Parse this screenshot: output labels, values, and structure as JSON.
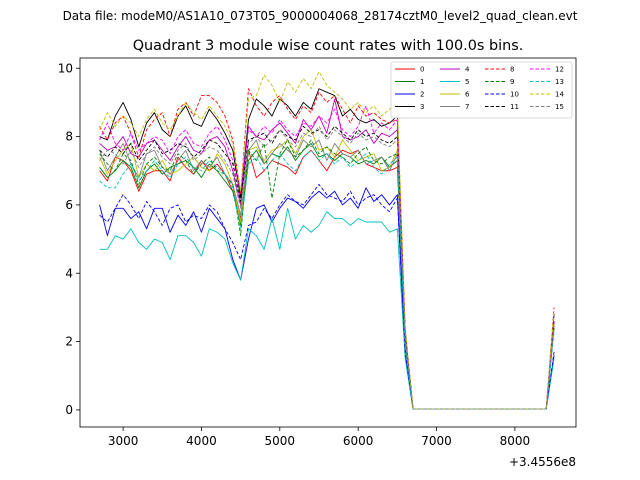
{
  "suptitle": "Data file: modeM0/AS1A10_073T05_9000004068_28174cztM0_level2_quad_clean.evt",
  "chart_data": {
    "type": "line",
    "title": "Quadrant 3 module wise count rates with 100.0s bins.",
    "xlabel": "",
    "ylabel": "",
    "x_offset_label": "+3.4556e8",
    "x_offset_value": 345560000,
    "xlim": [
      2450,
      8780
    ],
    "ylim": [
      -0.5,
      10.3
    ],
    "xticks": [
      3000,
      4000,
      5000,
      6000,
      7000,
      8000
    ],
    "yticks": [
      0,
      2,
      4,
      6,
      8,
      10
    ],
    "grid": false,
    "legend_position": "top-right",
    "x": [
      2700,
      2800,
      2900,
      3000,
      3100,
      3200,
      3300,
      3400,
      3500,
      3600,
      3700,
      3800,
      3900,
      4000,
      4100,
      4200,
      4300,
      4400,
      4500,
      4600,
      4700,
      4800,
      4900,
      5000,
      5100,
      5200,
      5300,
      5400,
      5500,
      5600,
      5700,
      5800,
      5900,
      6000,
      6100,
      6200,
      6300,
      6400,
      6500,
      6600,
      6700,
      6800,
      6900,
      7000,
      7100,
      7200,
      7300,
      7400,
      7500,
      7600,
      7700,
      7800,
      7900,
      8000,
      8100,
      8200,
      8300,
      8400,
      8500
    ],
    "series": [
      {
        "name": "0",
        "color": "#ff0000",
        "dash": "solid",
        "values": [
          7.0,
          6.7,
          7.4,
          7.3,
          7.0,
          6.4,
          6.9,
          7.0,
          7.0,
          6.7,
          7.4,
          7.1,
          6.9,
          7.3,
          7.0,
          7.2,
          6.9,
          6.4,
          5.6,
          7.6,
          6.8,
          7.0,
          7.3,
          7.2,
          7.1,
          6.9,
          7.4,
          7.6,
          7.3,
          7.0,
          7.4,
          7.6,
          7.5,
          7.6,
          7.2,
          7.1,
          7.0,
          7.0,
          7.1,
          2.0,
          0.03,
          0.03,
          0.03,
          0.03,
          0.03,
          0.03,
          0.03,
          0.03,
          0.03,
          0.03,
          0.03,
          0.03,
          0.03,
          0.03,
          0.03,
          0.03,
          0.03,
          0.03,
          2.6
        ]
      },
      {
        "name": "1",
        "color": "#008000",
        "dash": "solid",
        "values": [
          7.1,
          6.8,
          7.0,
          7.3,
          7.1,
          6.5,
          7.0,
          7.2,
          6.9,
          7.1,
          7.2,
          7.3,
          7.1,
          6.8,
          7.2,
          7.0,
          6.7,
          6.4,
          5.4,
          7.3,
          7.6,
          7.2,
          7.5,
          7.4,
          7.7,
          7.3,
          7.6,
          7.8,
          7.4,
          7.5,
          7.3,
          7.5,
          7.4,
          7.2,
          7.3,
          7.2,
          7.4,
          7.1,
          7.3,
          1.9,
          0.03,
          0.03,
          0.03,
          0.03,
          0.03,
          0.03,
          0.03,
          0.03,
          0.03,
          0.03,
          0.03,
          0.03,
          0.03,
          0.03,
          0.03,
          0.03,
          0.03,
          0.03,
          2.4
        ]
      },
      {
        "name": "2",
        "color": "#0000ff",
        "dash": "solid",
        "values": [
          6.0,
          5.1,
          5.9,
          5.9,
          5.6,
          5.8,
          5.3,
          5.9,
          5.9,
          5.2,
          5.7,
          5.4,
          5.8,
          5.2,
          5.9,
          5.6,
          5.3,
          4.4,
          3.8,
          5.0,
          5.9,
          6.0,
          5.5,
          5.9,
          6.2,
          6.1,
          5.9,
          6.2,
          6.4,
          6.2,
          6.4,
          6.0,
          6.2,
          5.9,
          6.5,
          6.1,
          6.3,
          6.0,
          6.3,
          1.6,
          0.03,
          0.03,
          0.03,
          0.03,
          0.03,
          0.03,
          0.03,
          0.03,
          0.03,
          0.03,
          0.03,
          0.03,
          0.03,
          0.03,
          0.03,
          0.03,
          0.03,
          0.03,
          1.6
        ]
      },
      {
        "name": "3",
        "color": "#000000",
        "dash": "solid",
        "values": [
          8.0,
          7.9,
          8.6,
          9.0,
          8.5,
          7.7,
          8.4,
          8.7,
          8.2,
          8.0,
          8.6,
          8.9,
          8.4,
          8.3,
          8.8,
          8.5,
          8.1,
          7.6,
          6.2,
          8.5,
          9.1,
          8.9,
          8.6,
          9.1,
          8.9,
          8.6,
          9.0,
          8.8,
          9.4,
          9.3,
          9.2,
          8.6,
          8.8,
          8.5,
          8.4,
          8.5,
          8.3,
          8.4,
          8.6,
          2.3,
          0.03,
          0.03,
          0.03,
          0.03,
          0.03,
          0.03,
          0.03,
          0.03,
          0.03,
          0.03,
          0.03,
          0.03,
          0.03,
          0.03,
          0.03,
          0.03,
          0.03,
          0.03,
          2.8
        ]
      },
      {
        "name": "4",
        "color": "#c000c0",
        "dash": "solid",
        "values": [
          7.8,
          7.6,
          7.7,
          8.0,
          7.5,
          7.4,
          7.8,
          7.9,
          7.6,
          7.3,
          7.7,
          8.0,
          7.6,
          7.5,
          7.9,
          8.0,
          7.7,
          7.0,
          6.0,
          8.3,
          8.0,
          7.9,
          8.2,
          8.4,
          8.1,
          7.8,
          8.5,
          8.2,
          8.6,
          8.1,
          9.1,
          8.0,
          7.9,
          8.0,
          8.2,
          7.8,
          8.1,
          8.0,
          8.2,
          2.1,
          0.03,
          0.03,
          0.03,
          0.03,
          0.03,
          0.03,
          0.03,
          0.03,
          0.03,
          0.03,
          0.03,
          0.03,
          0.03,
          0.03,
          0.03,
          0.03,
          0.03,
          0.03,
          2.5
        ]
      },
      {
        "name": "5",
        "color": "#00bfbf",
        "dash": "solid",
        "values": [
          4.7,
          4.7,
          5.1,
          5.0,
          5.3,
          4.9,
          4.7,
          5.0,
          4.9,
          4.4,
          5.1,
          5.1,
          4.9,
          4.5,
          5.3,
          5.2,
          5.0,
          4.3,
          3.8,
          5.3,
          5.1,
          4.7,
          5.6,
          4.7,
          5.9,
          5.0,
          5.4,
          5.2,
          5.4,
          5.8,
          5.6,
          5.6,
          5.4,
          5.6,
          5.5,
          5.5,
          5.5,
          5.2,
          5.3,
          1.5,
          0.03,
          0.03,
          0.03,
          0.03,
          0.03,
          0.03,
          0.03,
          0.03,
          0.03,
          0.03,
          0.03,
          0.03,
          0.03,
          0.03,
          0.03,
          0.03,
          0.03,
          0.03,
          1.5
        ]
      },
      {
        "name": "6",
        "color": "#bfbf00",
        "dash": "solid",
        "values": [
          7.4,
          6.9,
          7.3,
          7.6,
          7.8,
          6.8,
          7.2,
          7.0,
          7.3,
          6.9,
          7.0,
          7.2,
          7.4,
          7.1,
          7.0,
          7.5,
          7.2,
          6.6,
          5.5,
          7.6,
          7.7,
          7.3,
          7.6,
          7.7,
          7.9,
          7.5,
          8.0,
          8.2,
          7.6,
          7.7,
          7.4,
          7.9,
          7.6,
          7.3,
          7.4,
          7.5,
          7.0,
          7.1,
          7.6,
          2.0,
          0.03,
          0.03,
          0.03,
          0.03,
          0.03,
          0.03,
          0.03,
          0.03,
          0.03,
          0.03,
          0.03,
          0.03,
          0.03,
          0.03,
          0.03,
          0.03,
          0.03,
          0.03,
          2.5
        ]
      },
      {
        "name": "7",
        "color": "#808080",
        "dash": "solid",
        "values": [
          7.6,
          7.0,
          7.4,
          7.8,
          7.2,
          6.8,
          7.5,
          7.6,
          7.1,
          6.9,
          7.3,
          7.6,
          7.0,
          7.3,
          7.1,
          7.4,
          6.9,
          6.6,
          5.7,
          7.6,
          7.9,
          7.2,
          7.5,
          7.8,
          7.6,
          7.4,
          7.9,
          7.7,
          7.9,
          7.3,
          7.8,
          7.5,
          7.4,
          7.6,
          7.2,
          7.3,
          7.4,
          7.0,
          7.5,
          2.1,
          0.03,
          0.03,
          0.03,
          0.03,
          0.03,
          0.03,
          0.03,
          0.03,
          0.03,
          0.03,
          0.03,
          0.03,
          0.03,
          0.03,
          0.03,
          0.03,
          0.03,
          0.03,
          2.6
        ]
      },
      {
        "name": "8",
        "color": "#ff0000",
        "dash": "dashed",
        "values": [
          8.3,
          7.9,
          8.4,
          8.6,
          8.1,
          7.4,
          8.2,
          8.5,
          8.7,
          8.0,
          8.8,
          9.0,
          8.6,
          9.2,
          9.2,
          9.0,
          8.6,
          7.9,
          6.3,
          9.4,
          8.9,
          8.6,
          9.0,
          9.2,
          8.8,
          8.5,
          8.9,
          8.7,
          9.3,
          9.0,
          9.2,
          8.8,
          8.4,
          8.9,
          8.6,
          8.7,
          8.5,
          8.4,
          8.5,
          2.4,
          0.03,
          0.03,
          0.03,
          0.03,
          0.03,
          0.03,
          0.03,
          0.03,
          0.03,
          0.03,
          0.03,
          0.03,
          0.03,
          0.03,
          0.03,
          0.03,
          0.03,
          0.03,
          3.0
        ]
      },
      {
        "name": "9",
        "color": "#008000",
        "dash": "dashed",
        "values": [
          7.5,
          7.2,
          7.0,
          7.5,
          7.3,
          6.6,
          7.2,
          7.4,
          7.1,
          7.0,
          7.5,
          7.3,
          6.9,
          7.2,
          7.4,
          7.0,
          6.9,
          6.6,
          5.1,
          7.6,
          7.3,
          7.8,
          6.2,
          7.5,
          7.9,
          7.4,
          7.6,
          7.9,
          7.5,
          7.7,
          7.5,
          7.4,
          7.2,
          7.5,
          7.7,
          7.3,
          7.2,
          7.4,
          7.5,
          2.0,
          0.03,
          0.03,
          0.03,
          0.03,
          0.03,
          0.03,
          0.03,
          0.03,
          0.03,
          0.03,
          0.03,
          0.03,
          0.03,
          0.03,
          0.03,
          0.03,
          0.03,
          0.03,
          2.4
        ]
      },
      {
        "name": "10",
        "color": "#0000ff",
        "dash": "dashed",
        "values": [
          5.7,
          5.5,
          5.9,
          6.3,
          6.0,
          5.6,
          6.1,
          5.8,
          5.4,
          5.9,
          6.0,
          5.5,
          5.7,
          5.6,
          6.0,
          5.8,
          5.3,
          4.9,
          4.4,
          5.4,
          5.5,
          5.9,
          5.6,
          6.0,
          6.3,
          6.1,
          6.0,
          6.3,
          6.6,
          6.3,
          6.2,
          6.1,
          6.4,
          6.0,
          6.2,
          6.3,
          6.0,
          5.8,
          6.2,
          1.7,
          0.03,
          0.03,
          0.03,
          0.03,
          0.03,
          0.03,
          0.03,
          0.03,
          0.03,
          0.03,
          0.03,
          0.03,
          0.03,
          0.03,
          0.03,
          0.03,
          0.03,
          0.03,
          1.7
        ]
      },
      {
        "name": "11",
        "color": "#000000",
        "dash": "dashed",
        "values": [
          7.6,
          7.4,
          7.7,
          7.5,
          7.8,
          7.3,
          7.6,
          7.9,
          7.5,
          7.6,
          7.8,
          7.7,
          7.4,
          7.6,
          7.9,
          7.8,
          7.5,
          7.2,
          6.1,
          7.9,
          8.0,
          8.1,
          7.8,
          8.2,
          8.0,
          7.9,
          8.3,
          8.1,
          8.2,
          8.0,
          8.3,
          8.1,
          7.9,
          8.2,
          8.0,
          8.1,
          7.9,
          7.8,
          8.0,
          2.2,
          0.03,
          0.03,
          0.03,
          0.03,
          0.03,
          0.03,
          0.03,
          0.03,
          0.03,
          0.03,
          0.03,
          0.03,
          0.03,
          0.03,
          0.03,
          0.03,
          0.03,
          0.03,
          2.6
        ]
      },
      {
        "name": "12",
        "color": "#ff00ff",
        "dash": "dashed",
        "values": [
          7.9,
          8.4,
          7.8,
          7.6,
          8.1,
          7.6,
          7.8,
          8.0,
          7.9,
          7.5,
          8.0,
          8.2,
          7.8,
          7.7,
          8.1,
          8.3,
          7.9,
          7.3,
          6.4,
          8.2,
          8.0,
          8.3,
          8.1,
          8.5,
          8.2,
          8.0,
          8.4,
          8.3,
          8.6,
          8.4,
          8.8,
          8.2,
          8.0,
          8.3,
          8.9,
          8.1,
          8.4,
          8.2,
          8.5,
          2.2,
          0.03,
          0.03,
          0.03,
          0.03,
          0.03,
          0.03,
          0.03,
          0.03,
          0.03,
          0.03,
          0.03,
          0.03,
          0.03,
          0.03,
          0.03,
          0.03,
          0.03,
          0.03,
          2.6
        ]
      },
      {
        "name": "13",
        "color": "#00bfbf",
        "dash": "dashed",
        "values": [
          6.7,
          6.5,
          6.5,
          6.9,
          7.2,
          6.7,
          7.0,
          7.3,
          7.0,
          6.8,
          7.2,
          7.4,
          7.1,
          7.0,
          7.3,
          7.1,
          6.9,
          6.5,
          5.3,
          7.2,
          7.4,
          7.0,
          7.3,
          7.5,
          7.2,
          7.0,
          7.4,
          7.6,
          7.3,
          7.5,
          7.2,
          7.4,
          7.1,
          7.3,
          7.5,
          7.1,
          6.9,
          7.2,
          7.4,
          1.9,
          0.03,
          0.03,
          0.03,
          0.03,
          0.03,
          0.03,
          0.03,
          0.03,
          0.03,
          0.03,
          0.03,
          0.03,
          0.03,
          0.03,
          0.03,
          0.03,
          0.03,
          0.03,
          2.3
        ]
      },
      {
        "name": "14",
        "color": "#bfbf00",
        "dash": "dashed",
        "values": [
          8.2,
          8.7,
          8.3,
          8.6,
          8.4,
          8.0,
          8.5,
          8.8,
          8.4,
          8.2,
          8.6,
          9.0,
          8.7,
          8.5,
          8.9,
          8.6,
          8.3,
          7.8,
          6.4,
          9.1,
          9.2,
          9.8,
          9.5,
          9.0,
          9.6,
          9.3,
          9.7,
          9.4,
          9.9,
          9.5,
          9.3,
          9.1,
          8.8,
          9.0,
          8.7,
          8.9,
          8.6,
          8.8,
          9.0,
          2.4,
          0.03,
          0.03,
          0.03,
          0.03,
          0.03,
          0.03,
          0.03,
          0.03,
          0.03,
          0.03,
          0.03,
          0.03,
          0.03,
          0.03,
          0.03,
          0.03,
          0.03,
          0.03,
          2.9
        ]
      },
      {
        "name": "15",
        "color": "#808080",
        "dash": "dashed",
        "values": [
          7.3,
          7.6,
          7.5,
          7.2,
          7.6,
          7.1,
          7.5,
          7.7,
          7.4,
          7.2,
          7.6,
          7.8,
          7.3,
          7.5,
          7.7,
          7.6,
          7.3,
          6.9,
          5.9,
          7.8,
          8.0,
          7.7,
          7.9,
          8.2,
          7.9,
          7.7,
          8.1,
          8.0,
          8.3,
          7.9,
          8.2,
          8.0,
          7.8,
          8.1,
          7.9,
          8.0,
          7.8,
          7.7,
          7.9,
          2.1,
          0.03,
          0.03,
          0.03,
          0.03,
          0.03,
          0.03,
          0.03,
          0.03,
          0.03,
          0.03,
          0.03,
          0.03,
          0.03,
          0.03,
          0.03,
          0.03,
          0.03,
          0.03,
          2.5
        ]
      }
    ]
  }
}
